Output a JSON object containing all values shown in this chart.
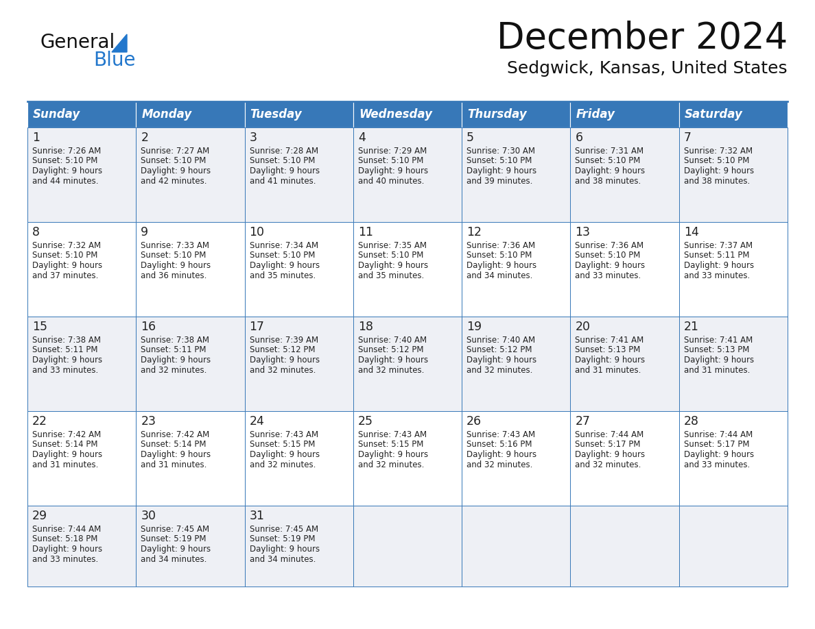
{
  "title": "December 2024",
  "subtitle": "Sedgwick, Kansas, United States",
  "header_color": "#3778b8",
  "header_text_color": "#ffffff",
  "cell_bg_color": "#ffffff",
  "alt_cell_bg_color": "#eef0f5",
  "border_color": "#3778b8",
  "text_color": "#222222",
  "day_names": [
    "Sunday",
    "Monday",
    "Tuesday",
    "Wednesday",
    "Thursday",
    "Friday",
    "Saturday"
  ],
  "days": [
    {
      "day": 1,
      "col": 0,
      "row": 0,
      "sunrise": "7:26 AM",
      "sunset": "5:10 PM",
      "daylight_h": "9 hours",
      "daylight_m": "and 44 minutes."
    },
    {
      "day": 2,
      "col": 1,
      "row": 0,
      "sunrise": "7:27 AM",
      "sunset": "5:10 PM",
      "daylight_h": "9 hours",
      "daylight_m": "and 42 minutes."
    },
    {
      "day": 3,
      "col": 2,
      "row": 0,
      "sunrise": "7:28 AM",
      "sunset": "5:10 PM",
      "daylight_h": "9 hours",
      "daylight_m": "and 41 minutes."
    },
    {
      "day": 4,
      "col": 3,
      "row": 0,
      "sunrise": "7:29 AM",
      "sunset": "5:10 PM",
      "daylight_h": "9 hours",
      "daylight_m": "and 40 minutes."
    },
    {
      "day": 5,
      "col": 4,
      "row": 0,
      "sunrise": "7:30 AM",
      "sunset": "5:10 PM",
      "daylight_h": "9 hours",
      "daylight_m": "and 39 minutes."
    },
    {
      "day": 6,
      "col": 5,
      "row": 0,
      "sunrise": "7:31 AM",
      "sunset": "5:10 PM",
      "daylight_h": "9 hours",
      "daylight_m": "and 38 minutes."
    },
    {
      "day": 7,
      "col": 6,
      "row": 0,
      "sunrise": "7:32 AM",
      "sunset": "5:10 PM",
      "daylight_h": "9 hours",
      "daylight_m": "and 38 minutes."
    },
    {
      "day": 8,
      "col": 0,
      "row": 1,
      "sunrise": "7:32 AM",
      "sunset": "5:10 PM",
      "daylight_h": "9 hours",
      "daylight_m": "and 37 minutes."
    },
    {
      "day": 9,
      "col": 1,
      "row": 1,
      "sunrise": "7:33 AM",
      "sunset": "5:10 PM",
      "daylight_h": "9 hours",
      "daylight_m": "and 36 minutes."
    },
    {
      "day": 10,
      "col": 2,
      "row": 1,
      "sunrise": "7:34 AM",
      "sunset": "5:10 PM",
      "daylight_h": "9 hours",
      "daylight_m": "and 35 minutes."
    },
    {
      "day": 11,
      "col": 3,
      "row": 1,
      "sunrise": "7:35 AM",
      "sunset": "5:10 PM",
      "daylight_h": "9 hours",
      "daylight_m": "and 35 minutes."
    },
    {
      "day": 12,
      "col": 4,
      "row": 1,
      "sunrise": "7:36 AM",
      "sunset": "5:10 PM",
      "daylight_h": "9 hours",
      "daylight_m": "and 34 minutes."
    },
    {
      "day": 13,
      "col": 5,
      "row": 1,
      "sunrise": "7:36 AM",
      "sunset": "5:10 PM",
      "daylight_h": "9 hours",
      "daylight_m": "and 33 minutes."
    },
    {
      "day": 14,
      "col": 6,
      "row": 1,
      "sunrise": "7:37 AM",
      "sunset": "5:11 PM",
      "daylight_h": "9 hours",
      "daylight_m": "and 33 minutes."
    },
    {
      "day": 15,
      "col": 0,
      "row": 2,
      "sunrise": "7:38 AM",
      "sunset": "5:11 PM",
      "daylight_h": "9 hours",
      "daylight_m": "and 33 minutes."
    },
    {
      "day": 16,
      "col": 1,
      "row": 2,
      "sunrise": "7:38 AM",
      "sunset": "5:11 PM",
      "daylight_h": "9 hours",
      "daylight_m": "and 32 minutes."
    },
    {
      "day": 17,
      "col": 2,
      "row": 2,
      "sunrise": "7:39 AM",
      "sunset": "5:12 PM",
      "daylight_h": "9 hours",
      "daylight_m": "and 32 minutes."
    },
    {
      "day": 18,
      "col": 3,
      "row": 2,
      "sunrise": "7:40 AM",
      "sunset": "5:12 PM",
      "daylight_h": "9 hours",
      "daylight_m": "and 32 minutes."
    },
    {
      "day": 19,
      "col": 4,
      "row": 2,
      "sunrise": "7:40 AM",
      "sunset": "5:12 PM",
      "daylight_h": "9 hours",
      "daylight_m": "and 32 minutes."
    },
    {
      "day": 20,
      "col": 5,
      "row": 2,
      "sunrise": "7:41 AM",
      "sunset": "5:13 PM",
      "daylight_h": "9 hours",
      "daylight_m": "and 31 minutes."
    },
    {
      "day": 21,
      "col": 6,
      "row": 2,
      "sunrise": "7:41 AM",
      "sunset": "5:13 PM",
      "daylight_h": "9 hours",
      "daylight_m": "and 31 minutes."
    },
    {
      "day": 22,
      "col": 0,
      "row": 3,
      "sunrise": "7:42 AM",
      "sunset": "5:14 PM",
      "daylight_h": "9 hours",
      "daylight_m": "and 31 minutes."
    },
    {
      "day": 23,
      "col": 1,
      "row": 3,
      "sunrise": "7:42 AM",
      "sunset": "5:14 PM",
      "daylight_h": "9 hours",
      "daylight_m": "and 31 minutes."
    },
    {
      "day": 24,
      "col": 2,
      "row": 3,
      "sunrise": "7:43 AM",
      "sunset": "5:15 PM",
      "daylight_h": "9 hours",
      "daylight_m": "and 32 minutes."
    },
    {
      "day": 25,
      "col": 3,
      "row": 3,
      "sunrise": "7:43 AM",
      "sunset": "5:15 PM",
      "daylight_h": "9 hours",
      "daylight_m": "and 32 minutes."
    },
    {
      "day": 26,
      "col": 4,
      "row": 3,
      "sunrise": "7:43 AM",
      "sunset": "5:16 PM",
      "daylight_h": "9 hours",
      "daylight_m": "and 32 minutes."
    },
    {
      "day": 27,
      "col": 5,
      "row": 3,
      "sunrise": "7:44 AM",
      "sunset": "5:17 PM",
      "daylight_h": "9 hours",
      "daylight_m": "and 32 minutes."
    },
    {
      "day": 28,
      "col": 6,
      "row": 3,
      "sunrise": "7:44 AM",
      "sunset": "5:17 PM",
      "daylight_h": "9 hours",
      "daylight_m": "and 33 minutes."
    },
    {
      "day": 29,
      "col": 0,
      "row": 4,
      "sunrise": "7:44 AM",
      "sunset": "5:18 PM",
      "daylight_h": "9 hours",
      "daylight_m": "and 33 minutes."
    },
    {
      "day": 30,
      "col": 1,
      "row": 4,
      "sunrise": "7:45 AM",
      "sunset": "5:19 PM",
      "daylight_h": "9 hours",
      "daylight_m": "and 34 minutes."
    },
    {
      "day": 31,
      "col": 2,
      "row": 4,
      "sunrise": "7:45 AM",
      "sunset": "5:19 PM",
      "daylight_h": "9 hours",
      "daylight_m": "and 34 minutes."
    }
  ],
  "logo_text1": "General",
  "logo_text2": "Blue",
  "logo_color1": "#111111",
  "logo_color2": "#2277cc",
  "logo_triangle_color": "#2277cc",
  "figwidth": 11.88,
  "figheight": 9.18,
  "dpi": 100
}
